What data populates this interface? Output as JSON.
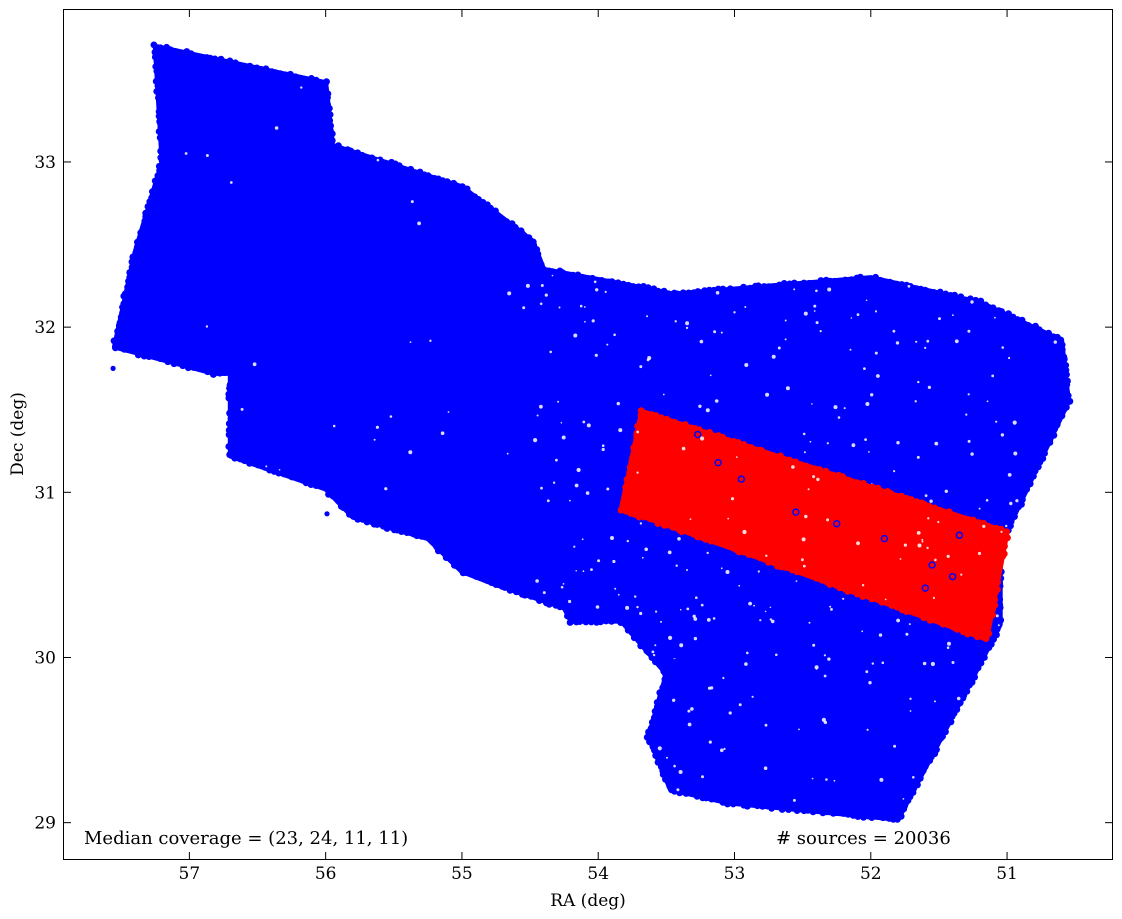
{
  "chart_data": {
    "type": "scatter",
    "title": "",
    "xlabel": "RA (deg)",
    "ylabel": "Dec (deg)",
    "xlim": [
      57.92,
      50.23
    ],
    "ylim": [
      28.78,
      33.92
    ],
    "x_inverted": true,
    "xticks": [
      57,
      56,
      55,
      54,
      53,
      52,
      51
    ],
    "yticks": [
      29,
      30,
      31,
      32,
      33
    ],
    "grid": false,
    "colors": {
      "all_sources": "#0000ff",
      "selected_region": "#ff0000"
    },
    "series": [
      {
        "color": "#0000ff",
        "regions": [
          [
            [
              57.25,
              33.7
            ],
            [
              56.0,
              33.48
            ],
            [
              55.95,
              33.1
            ],
            [
              55.0,
              32.85
            ],
            [
              54.48,
              32.52
            ],
            [
              54.4,
              32.35
            ],
            [
              53.75,
              32.25
            ],
            [
              53.45,
              32.2
            ],
            [
              52.0,
              32.3
            ],
            [
              51.2,
              32.15
            ],
            [
              50.6,
              31.92
            ],
            [
              50.55,
              31.55
            ],
            [
              51.05,
              30.68
            ],
            [
              51.05,
              30.2
            ],
            [
              51.3,
              29.8
            ],
            [
              51.8,
              29.02
            ],
            [
              53.05,
              29.12
            ],
            [
              53.47,
              29.2
            ],
            [
              53.63,
              29.52
            ],
            [
              53.5,
              29.9
            ],
            [
              53.83,
              30.22
            ],
            [
              54.2,
              30.22
            ],
            [
              54.25,
              30.3
            ],
            [
              54.78,
              30.45
            ],
            [
              55.0,
              30.52
            ],
            [
              55.25,
              30.72
            ],
            [
              55.8,
              30.85
            ],
            [
              56.0,
              31.02
            ],
            [
              56.7,
              31.22
            ],
            [
              56.7,
              31.72
            ],
            [
              56.82,
              31.72
            ],
            [
              57.55,
              31.88
            ],
            [
              57.4,
              32.45
            ],
            [
              57.2,
              33.0
            ]
          ]
        ]
      },
      {
        "color": "#ff0000",
        "regions": [
          [
            [
              53.68,
              31.49
            ],
            [
              51.0,
              30.76
            ],
            [
              51.15,
              30.11
            ],
            [
              53.83,
              30.9
            ]
          ]
        ]
      }
    ],
    "outliers": [
      {
        "x": 57.56,
        "y": 31.75
      },
      {
        "x": 55.99,
        "y": 30.87
      },
      {
        "x": 53.44,
        "y": 30.01
      }
    ],
    "annotations": [
      "Median coverage = (23, 24, 11, 11)",
      "# sources = 20036"
    ]
  }
}
